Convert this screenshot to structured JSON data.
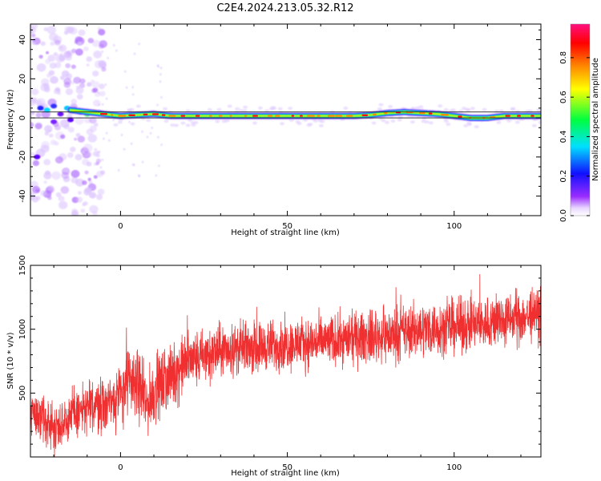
{
  "title": "C2E4.2024.213.05.32.R12",
  "chart_data": [
    {
      "type": "heatmap",
      "xlabel": "Height of straight line (km)",
      "ylabel": "Frequency (Hz)",
      "xlim": [
        -27,
        126
      ],
      "ylim": [
        -50,
        48
      ],
      "x_ticks": [
        0,
        50,
        100
      ],
      "y_ticks": [
        -40,
        -20,
        0,
        20,
        40
      ],
      "colorbar": {
        "label": "Normalized spectral amplitude",
        "range": [
          0,
          0.97
        ],
        "ticks": [
          0.0,
          0.2,
          0.4,
          0.6,
          0.8
        ],
        "tick_labels": [
          "0.0",
          "0.2",
          "0.4",
          "0.6",
          "0.8"
        ],
        "colormap": "white-purple-blue-cyan-green-yellow-orange-red-magenta"
      },
      "reference_lines_hz": [
        3.0,
        0.0
      ],
      "ridge": {
        "x": [
          -25,
          -20,
          -15,
          -10,
          -5,
          0,
          5,
          10,
          15,
          20,
          30,
          40,
          50,
          60,
          70,
          75,
          80,
          85,
          90,
          95,
          100,
          105,
          110,
          115,
          120,
          126
        ],
        "frequency_hz": [
          5,
          5,
          4,
          3,
          2,
          1,
          1.5,
          2,
          1,
          1,
          1,
          1,
          1,
          1,
          1,
          1.5,
          2.5,
          3,
          2.5,
          2,
          1,
          0,
          0,
          1,
          1,
          1
        ]
      }
    },
    {
      "type": "line",
      "xlabel": "Height of straight line (km)",
      "ylabel": "SNR (10 * v/v)",
      "xlim": [
        -27,
        126
      ],
      "ylim": [
        0,
        1500
      ],
      "x_ticks": [
        0,
        50,
        100
      ],
      "y_ticks": [
        500,
        1000,
        1500
      ],
      "series": [
        {
          "color": "#f03030",
          "x": [
            -27,
            -20,
            -15,
            -10,
            -5,
            0,
            2,
            5,
            8,
            10,
            15,
            20,
            25,
            30,
            40,
            50,
            60,
            70,
            80,
            90,
            100,
            110,
            120,
            126
          ],
          "values": [
            380,
            220,
            330,
            380,
            420,
            480,
            600,
            580,
            400,
            520,
            620,
            750,
            780,
            830,
            860,
            880,
            900,
            930,
            950,
            1000,
            1020,
            1050,
            1090,
            1120
          ],
          "noise_amplitude": [
            150,
            150,
            160,
            170,
            180,
            200,
            220,
            220,
            200,
            210,
            200,
            190,
            180,
            170,
            160,
            160,
            160,
            160,
            170,
            170,
            170,
            170,
            170,
            170
          ]
        }
      ]
    }
  ]
}
